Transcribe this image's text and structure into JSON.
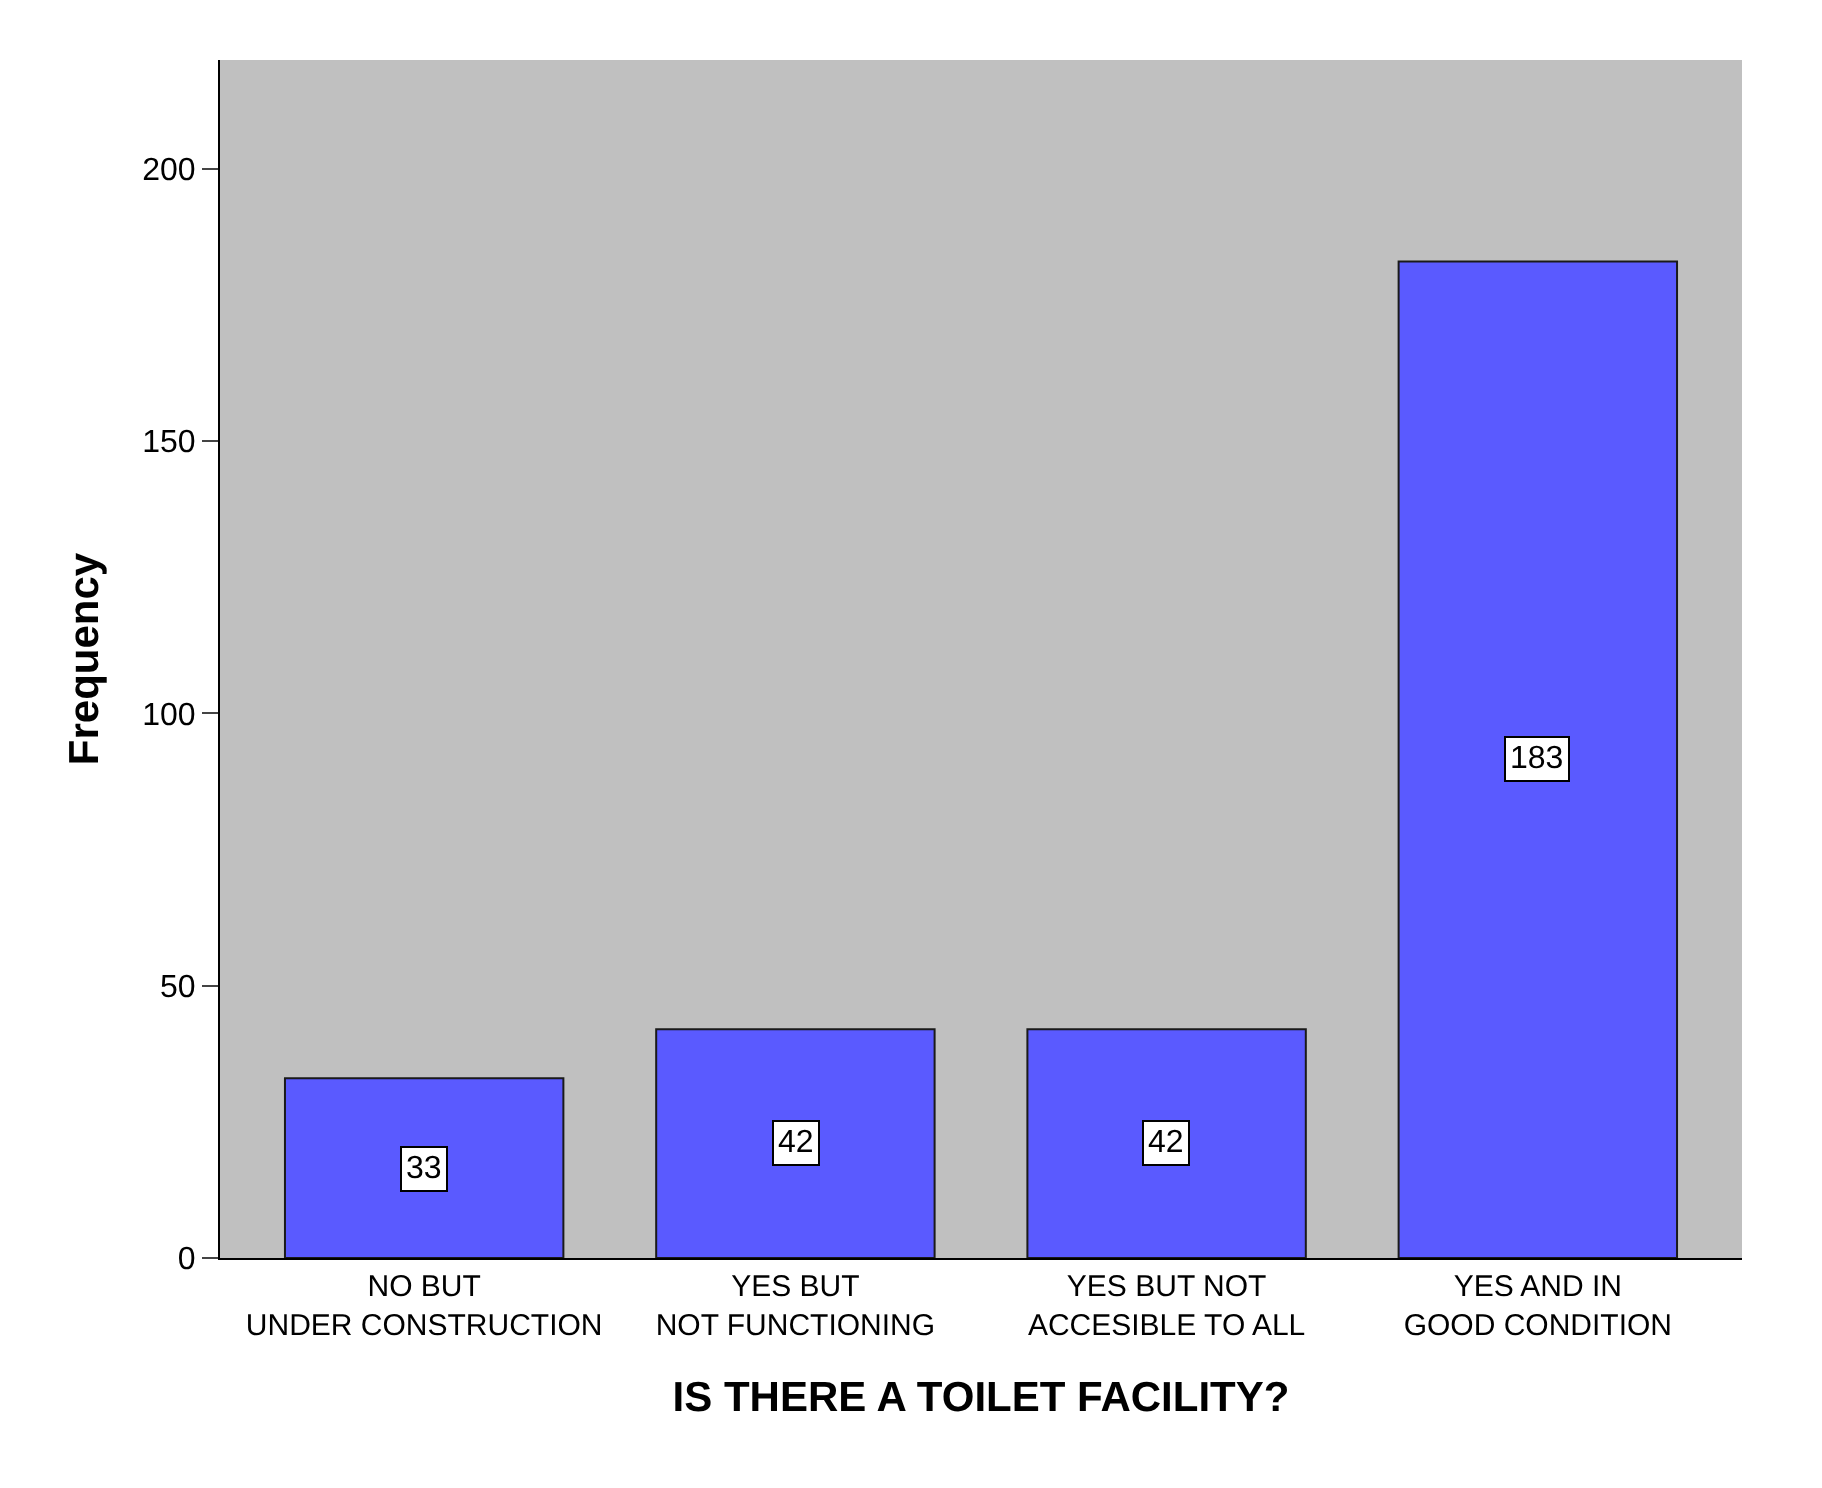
{
  "chart_data": {
    "type": "bar",
    "xlabel": "IS THERE A TOILET FACILITY?",
    "ylabel": "Frequency",
    "categories": [
      "NO BUT UNDER CONSTRUCTION",
      "YES BUT NOT FUNCTIONING",
      "YES BUT NOT ACCESIBLE TO ALL",
      "YES AND IN GOOD CONDITION"
    ],
    "values": [
      33,
      42,
      42,
      183
    ],
    "color": "#5a5aff",
    "ylim": [
      0,
      220
    ],
    "yticks": [
      0,
      50,
      100,
      150,
      200
    ],
    "grid": false,
    "data_labels": true
  }
}
